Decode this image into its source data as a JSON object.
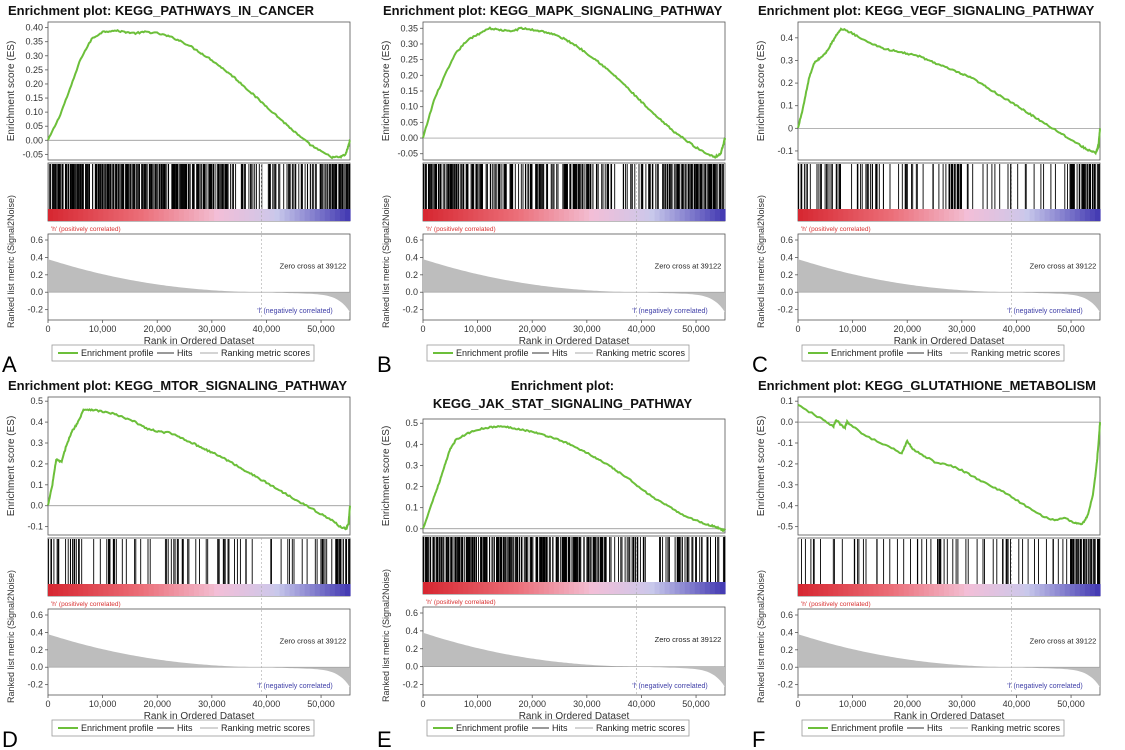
{
  "figure": {
    "colors": {
      "es_line": "#6cbf3a",
      "hit": "#000000",
      "metric_fill": "#bdbdbd",
      "pos_label": "#d83030",
      "neg_label": "#4040a8",
      "axis": "#555555",
      "zero_line": "#888888"
    },
    "common": {
      "y_label_top": "Enrichment score (ES)",
      "y_label_bottom": "Ranked list metric (Signal2Noise)",
      "x_label": "Rank in Ordered Dataset",
      "pos_label": "'h' (positively correlated)",
      "neg_label": "'l' (negatively correlated)",
      "zero_cross": "Zero cross at 39122",
      "legend": [
        "Enrichment profile",
        "Hits",
        "Ranking metric scores"
      ]
    }
  },
  "chart_data": [
    {
      "type": "line",
      "panel_letter": "A",
      "title": "Enrichment plot: KEGG_PATHWAYS_IN_CANCER",
      "es_ylim": [
        -0.07,
        0.42
      ],
      "es_ticks": [
        -0.05,
        0.0,
        0.05,
        0.1,
        0.15,
        0.2,
        0.25,
        0.3,
        0.35,
        0.4
      ],
      "es_tick_labels": [
        "-0.05",
        "0.00",
        "0.05",
        "0.10",
        "0.15",
        "0.20",
        "0.25",
        "0.30",
        "0.35",
        "0.40"
      ],
      "es_curve": {
        "rank": [
          0,
          2000,
          4000,
          6000,
          8000,
          10000,
          12000,
          14000,
          16000,
          18000,
          20000,
          22000,
          24000,
          26000,
          28000,
          30000,
          32000,
          34000,
          36000,
          38000,
          40000,
          42000,
          44000,
          46000,
          48000,
          50000,
          52000,
          53500,
          54500,
          55000,
          55300
        ],
        "es": [
          0.0,
          0.08,
          0.18,
          0.29,
          0.36,
          0.385,
          0.39,
          0.385,
          0.38,
          0.385,
          0.38,
          0.37,
          0.355,
          0.335,
          0.31,
          0.285,
          0.255,
          0.225,
          0.19,
          0.155,
          0.12,
          0.085,
          0.05,
          0.015,
          -0.015,
          -0.04,
          -0.06,
          -0.06,
          -0.05,
          -0.02,
          0.0
        ]
      },
      "hits_density": [
        "dense",
        "dense",
        "dense",
        "dense",
        "dense",
        "dense",
        "dense",
        "dense",
        "dense",
        "dense",
        "dense",
        "dense",
        "medium",
        "medium",
        "medium",
        "medium",
        "medium",
        "medium",
        "dense",
        "dense"
      ],
      "metric": {
        "ylim": [
          -0.25,
          0.6
        ],
        "ticks": [
          0.6,
          0.4,
          0.2,
          0.0,
          -0.2
        ],
        "tick_labels": [
          "0.6",
          "0.4",
          "0.2",
          "0.0",
          "-0.2"
        ],
        "zero_cross": 39122
      },
      "x_ticks": [
        0,
        10000,
        20000,
        30000,
        40000,
        50000
      ],
      "x_tick_labels": [
        "0",
        "10,000",
        "20,000",
        "30,000",
        "40,000",
        "50,000"
      ],
      "x_range": [
        0,
        55300
      ]
    },
    {
      "type": "line",
      "panel_letter": "B",
      "title": "Enrichment plot: KEGG_MAPK_SIGNALING_PATHWAY",
      "es_ylim": [
        -0.07,
        0.37
      ],
      "es_ticks": [
        -0.05,
        0.0,
        0.05,
        0.1,
        0.15,
        0.2,
        0.25,
        0.3,
        0.35
      ],
      "es_tick_labels": [
        "-0.05",
        "0.00",
        "0.05",
        "0.10",
        "0.15",
        "0.20",
        "0.25",
        "0.30",
        "0.35"
      ],
      "es_curve": {
        "rank": [
          0,
          2000,
          4000,
          6000,
          8000,
          10000,
          12000,
          14000,
          16000,
          18000,
          20000,
          22000,
          24000,
          26000,
          28000,
          30000,
          32000,
          34000,
          36000,
          38000,
          40000,
          42000,
          44000,
          46000,
          48000,
          50000,
          52000,
          53500,
          54500,
          55000,
          55300
        ],
        "es": [
          0.0,
          0.12,
          0.2,
          0.27,
          0.31,
          0.33,
          0.35,
          0.345,
          0.34,
          0.35,
          0.345,
          0.34,
          0.33,
          0.315,
          0.295,
          0.27,
          0.245,
          0.215,
          0.185,
          0.15,
          0.115,
          0.08,
          0.05,
          0.02,
          -0.005,
          -0.03,
          -0.05,
          -0.06,
          -0.05,
          -0.02,
          0.0
        ]
      },
      "hits_density": [
        "dense",
        "dense",
        "dense",
        "dense",
        "medium",
        "dense",
        "medium",
        "dense",
        "medium",
        "dense",
        "dense",
        "medium",
        "medium",
        "medium",
        "medium",
        "medium",
        "dense",
        "dense",
        "dense",
        "dense"
      ],
      "metric": {
        "ylim": [
          -0.25,
          0.6
        ],
        "ticks": [
          0.6,
          0.4,
          0.2,
          0.0,
          -0.2
        ],
        "tick_labels": [
          "0.6",
          "0.4",
          "0.2",
          "0.0",
          "-0.2"
        ],
        "zero_cross": 39122
      },
      "x_ticks": [
        0,
        10000,
        20000,
        30000,
        40000,
        50000
      ],
      "x_tick_labels": [
        "0",
        "10,000",
        "20,000",
        "30,000",
        "40,000",
        "50,000"
      ],
      "x_range": [
        0,
        55300
      ]
    },
    {
      "type": "line",
      "panel_letter": "C",
      "title": "Enrichment plot: KEGG_VEGF_SIGNALING_PATHWAY",
      "es_ylim": [
        -0.14,
        0.47
      ],
      "es_ticks": [
        -0.1,
        0.0,
        0.1,
        0.2,
        0.3,
        0.4
      ],
      "es_tick_labels": [
        "-0.1",
        "0",
        "0.1",
        "0.2",
        "0.3",
        "0.4"
      ],
      "es_curve": {
        "rank": [
          0,
          1000,
          2000,
          3000,
          4000,
          5000,
          6000,
          7000,
          8000,
          10000,
          12000,
          14000,
          16000,
          18000,
          20000,
          22000,
          24000,
          26000,
          28000,
          30000,
          32000,
          34000,
          36000,
          38000,
          40000,
          42000,
          44000,
          46000,
          48000,
          50000,
          52000,
          53500,
          54500,
          55000,
          55300
        ],
        "es": [
          0.0,
          0.1,
          0.22,
          0.29,
          0.31,
          0.33,
          0.37,
          0.41,
          0.44,
          0.42,
          0.39,
          0.37,
          0.35,
          0.34,
          0.33,
          0.32,
          0.3,
          0.28,
          0.26,
          0.24,
          0.22,
          0.19,
          0.16,
          0.13,
          0.1,
          0.07,
          0.04,
          0.01,
          -0.02,
          -0.05,
          -0.08,
          -0.1,
          -0.11,
          -0.08,
          0.0
        ]
      },
      "hits_density": [
        "medium",
        "medium",
        "medium",
        "sparse",
        "medium",
        "medium",
        "sparse",
        "medium",
        "sparse",
        "sparse",
        "dense",
        "sparse",
        "sparse",
        "sparse",
        "sparse",
        "sparse",
        "sparse",
        "sparse",
        "dense",
        "dense"
      ],
      "metric": {
        "ylim": [
          -0.25,
          0.6
        ],
        "ticks": [
          0.6,
          0.4,
          0.2,
          0.0,
          -0.2
        ],
        "tick_labels": [
          "0.6",
          "0.4",
          "0.2",
          "0.0",
          "-0.2"
        ],
        "zero_cross": 39122
      },
      "x_ticks": [
        0,
        10000,
        20000,
        30000,
        40000,
        50000
      ],
      "x_tick_labels": [
        "0",
        "10,000",
        "20,000",
        "30,000",
        "40,000",
        "50,000"
      ],
      "x_range": [
        0,
        55300
      ]
    },
    {
      "type": "line",
      "panel_letter": "D",
      "title": "Enrichment plot: KEGG_MTOR_SIGNALING_PATHWAY",
      "es_ylim": [
        -0.14,
        0.52
      ],
      "es_ticks": [
        -0.1,
        0.0,
        0.1,
        0.2,
        0.3,
        0.4,
        0.5
      ],
      "es_tick_labels": [
        "-0.1",
        "0.0",
        "0.1",
        "0.2",
        "0.3",
        "0.4",
        "0.5"
      ],
      "es_curve": {
        "rank": [
          0,
          800,
          1500,
          2500,
          3500,
          4500,
          5500,
          6500,
          8000,
          10000,
          12000,
          14000,
          16000,
          18000,
          20000,
          22000,
          24000,
          26000,
          28000,
          30000,
          32000,
          34000,
          36000,
          38000,
          40000,
          42000,
          44000,
          46000,
          48000,
          50000,
          52000,
          53500,
          54500,
          55000,
          55300
        ],
        "es": [
          0.0,
          0.1,
          0.22,
          0.21,
          0.3,
          0.36,
          0.4,
          0.46,
          0.46,
          0.45,
          0.44,
          0.42,
          0.4,
          0.37,
          0.355,
          0.35,
          0.33,
          0.305,
          0.28,
          0.255,
          0.23,
          0.2,
          0.17,
          0.14,
          0.11,
          0.08,
          0.05,
          0.02,
          -0.01,
          -0.04,
          -0.07,
          -0.1,
          -0.11,
          -0.09,
          0.0
        ]
      },
      "hits_density": [
        "medium",
        "medium",
        "sparse",
        "sparse",
        "medium",
        "sparse",
        "sparse",
        "sparse",
        "medium",
        "sparse",
        "sparse",
        "medium",
        "sparse",
        "sparse",
        "sparse",
        "sparse",
        "sparse",
        "sparse",
        "medium",
        "dense"
      ],
      "metric": {
        "ylim": [
          -0.25,
          0.6
        ],
        "ticks": [
          0.6,
          0.4,
          0.2,
          0.0,
          -0.2
        ],
        "tick_labels": [
          "0.6",
          "0.4",
          "0.2",
          "0.0",
          "-0.2"
        ],
        "zero_cross": 39122
      },
      "x_ticks": [
        0,
        10000,
        20000,
        30000,
        40000,
        50000
      ],
      "x_tick_labels": [
        "0",
        "10,000",
        "20,000",
        "30,000",
        "40,000",
        "50,000"
      ],
      "x_range": [
        0,
        55300
      ]
    },
    {
      "type": "line",
      "panel_letter": "E",
      "title": "Enrichment plot:",
      "title_line2": "KEGG_JAK_STAT_SIGNALING_PATHWAY",
      "es_ylim": [
        -0.02,
        0.52
      ],
      "es_ticks": [
        0.0,
        0.1,
        0.2,
        0.3,
        0.4,
        0.5
      ],
      "es_tick_labels": [
        "0.0",
        "0.1",
        "0.2",
        "0.3",
        "0.4",
        "0.5"
      ],
      "es_curve": {
        "rank": [
          0,
          2000,
          3000,
          4000,
          5000,
          6000,
          8000,
          10000,
          12000,
          14000,
          16000,
          18000,
          20000,
          22000,
          24000,
          26000,
          28000,
          30000,
          32000,
          34000,
          36000,
          38000,
          40000,
          42000,
          44000,
          46000,
          48000,
          50000,
          52000,
          53500,
          54500,
          55000,
          55300
        ],
        "es": [
          0.0,
          0.15,
          0.22,
          0.3,
          0.38,
          0.42,
          0.45,
          0.47,
          0.48,
          0.485,
          0.48,
          0.47,
          0.46,
          0.445,
          0.43,
          0.41,
          0.385,
          0.36,
          0.33,
          0.3,
          0.265,
          0.23,
          0.19,
          0.15,
          0.12,
          0.09,
          0.06,
          0.04,
          0.02,
          0.01,
          0.0,
          -0.01,
          0.0
        ]
      },
      "hits_density": [
        "dense",
        "dense",
        "dense",
        "dense",
        "dense",
        "dense",
        "dense",
        "dense",
        "dense",
        "dense",
        "dense",
        "dense",
        "medium",
        "medium",
        "medium",
        "sparse",
        "medium",
        "medium",
        "medium",
        "medium"
      ],
      "metric": {
        "ylim": [
          -0.25,
          0.6
        ],
        "ticks": [
          0.6,
          0.4,
          0.2,
          0.0,
          -0.2
        ],
        "tick_labels": [
          "0.6",
          "0.4",
          "0.2",
          "0.0",
          "-0.2"
        ],
        "zero_cross": 39122
      },
      "x_ticks": [
        0,
        10000,
        20000,
        30000,
        40000,
        50000
      ],
      "x_tick_labels": [
        "0",
        "10,000",
        "20,000",
        "30,000",
        "40,000",
        "50,000"
      ],
      "x_range": [
        0,
        55300
      ]
    },
    {
      "type": "line",
      "panel_letter": "F",
      "title": "Enrichment plot: KEGG_GLUTATHIONE_METABOLISM",
      "es_ylim": [
        -0.54,
        0.12
      ],
      "es_ticks": [
        -0.5,
        -0.4,
        -0.3,
        -0.2,
        -0.1,
        0.0,
        0.1
      ],
      "es_tick_labels": [
        "-0.5",
        "-0.4",
        "-0.3",
        "-0.2",
        "-0.1",
        "0.0",
        "0.1"
      ],
      "es_curve": {
        "rank": [
          0,
          4000,
          6500,
          7000,
          8500,
          9000,
          12000,
          16000,
          19000,
          20000,
          21000,
          23000,
          25000,
          28000,
          30000,
          32000,
          35000,
          38000,
          41000,
          44000,
          47000,
          49000,
          50500,
          52000,
          53000,
          54000,
          54700,
          55100,
          55300
        ],
        "es": [
          0.08,
          0.02,
          -0.02,
          0.01,
          -0.03,
          0.0,
          -0.06,
          -0.11,
          -0.15,
          -0.09,
          -0.13,
          -0.16,
          -0.19,
          -0.21,
          -0.23,
          -0.26,
          -0.3,
          -0.34,
          -0.39,
          -0.44,
          -0.47,
          -0.46,
          -0.48,
          -0.49,
          -0.45,
          -0.35,
          -0.2,
          -0.08,
          0.0
        ]
      },
      "hits_density": [
        "sparse",
        "sparse",
        "sparse",
        "sparse",
        "sparse",
        "sparse",
        "sparse",
        "sparse",
        "sparse",
        "medium",
        "sparse",
        "sparse",
        "sparse",
        "medium",
        "sparse",
        "sparse",
        "sparse",
        "sparse",
        "dense",
        "dense"
      ],
      "metric": {
        "ylim": [
          -0.25,
          0.6
        ],
        "ticks": [
          0.6,
          0.4,
          0.2,
          0.0,
          -0.2
        ],
        "tick_labels": [
          "0.6",
          "0.4",
          "0.2",
          "0.0",
          "-0.2"
        ],
        "zero_cross": 39122
      },
      "x_ticks": [
        0,
        10000,
        20000,
        30000,
        40000,
        50000
      ],
      "x_tick_labels": [
        "0",
        "10,000",
        "20,000",
        "30,000",
        "40,000",
        "50,000"
      ],
      "x_range": [
        0,
        55300
      ]
    }
  ]
}
